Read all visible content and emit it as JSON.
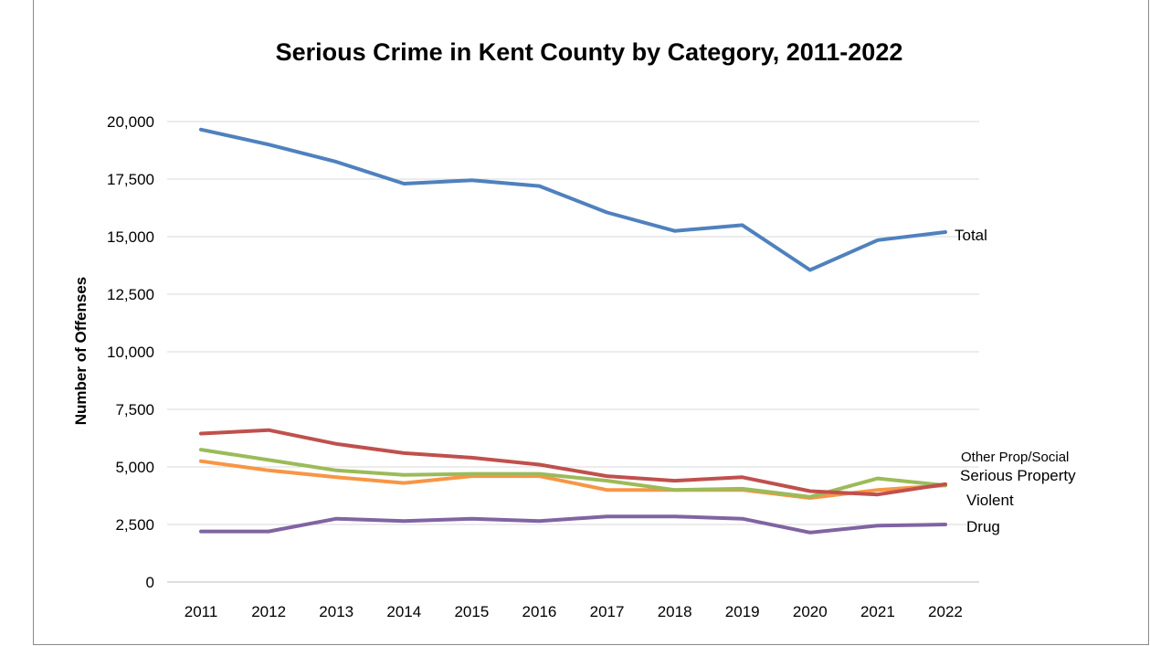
{
  "chart_data": {
    "type": "line",
    "title": "Serious Crime in Kent County by Category, 2011-2022",
    "xlabel": "",
    "ylabel": "Number of Offenses",
    "x": [
      "2011",
      "2012",
      "2013",
      "2014",
      "2015",
      "2016",
      "2017",
      "2018",
      "2019",
      "2020",
      "2021",
      "2022"
    ],
    "ylim": [
      0,
      20000
    ],
    "yticks": [
      0,
      2500,
      5000,
      7500,
      10000,
      12500,
      15000,
      17500,
      20000
    ],
    "ytick_labels": [
      "0",
      "2,500",
      "5,000",
      "7,500",
      "10,000",
      "12,500",
      "15,000",
      "17,500",
      "20,000"
    ],
    "grid": true,
    "legend": "none (series labelled at right end of lines)",
    "series": [
      {
        "name": "Total",
        "color": "#4F81BD",
        "values": [
          19650,
          19000,
          18250,
          17300,
          17450,
          17200,
          16050,
          15250,
          15500,
          13550,
          14850,
          15200
        ]
      },
      {
        "name": "Violent",
        "color": "#C0504D",
        "values": [
          6450,
          6600,
          6000,
          5600,
          5400,
          5100,
          4600,
          4400,
          4550,
          3950,
          3800,
          4250
        ]
      },
      {
        "name": "Other Prop/Social",
        "color": "#9BBB59",
        "values": [
          5750,
          5300,
          4850,
          4650,
          4700,
          4700,
          4400,
          4000,
          4050,
          3700,
          4500,
          4200
        ]
      },
      {
        "name": "Serious Property",
        "color": "#F79646",
        "values": [
          5250,
          4850,
          4550,
          4300,
          4600,
          4600,
          4000,
          4000,
          4000,
          3650,
          4000,
          4200
        ]
      },
      {
        "name": "Drug",
        "color": "#8064A2",
        "values": [
          2200,
          2200,
          2750,
          2650,
          2750,
          2650,
          2850,
          2850,
          2750,
          2150,
          2450,
          2500
        ]
      }
    ],
    "series_labels_display": [
      {
        "series": "Total",
        "text": "Total"
      },
      {
        "series": "Other Prop/Social",
        "text": "Other Prop/Social"
      },
      {
        "series": "Serious Property",
        "text": "Serious Property"
      },
      {
        "series": "Violent",
        "text": "Violent"
      },
      {
        "series": "Drug",
        "text": "Drug"
      }
    ]
  }
}
